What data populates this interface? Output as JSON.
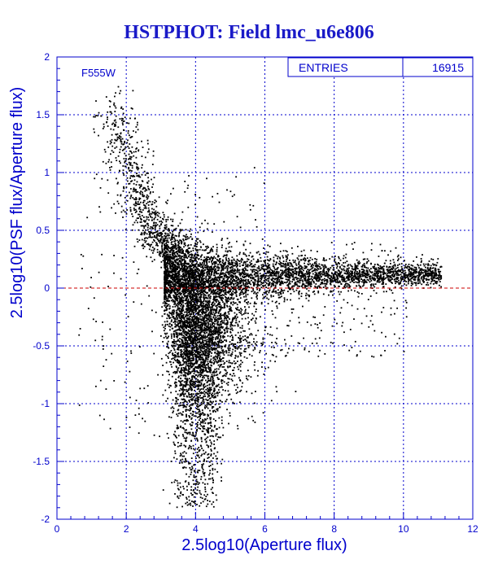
{
  "chart_data": {
    "type": "scatter",
    "title": "HSTPHOT: Field lmc_u6e806",
    "xlabel": "2.5log10(Aperture flux)",
    "ylabel": "2.5log10(PSF flux/Aperture flux)",
    "xlim": [
      0,
      12
    ],
    "ylim": [
      -2,
      2
    ],
    "x_ticks": [
      "0",
      "2",
      "4",
      "6",
      "8",
      "10",
      "12"
    ],
    "y_ticks": [
      "-2",
      "-1.5",
      "-1",
      "-0.5",
      "0",
      "0.5",
      "1",
      "1.5",
      "2"
    ],
    "x_grid_values": [
      2,
      4,
      6,
      8,
      10
    ],
    "y_grid_values": [
      -1.5,
      -1,
      -0.5,
      0.5,
      1,
      1.5
    ],
    "grid": true,
    "reference_line_y": 0,
    "filter_label": "F555W",
    "stats_box": {
      "label": "ENTRIES",
      "value": "16915",
      "placement": "top-right"
    },
    "entries": 16915,
    "point_count_rendered": 9000,
    "distribution": {
      "description_note": "",
      "bright_branch": {
        "x_range": [
          3,
          11.1
        ],
        "y_center": 0.12,
        "y_spread": 0.05
      },
      "faint_plume": {
        "x_range": [
          3.2,
          6.5
        ],
        "y_center": -0.35,
        "y_spread": 0.3
      },
      "upper_arm": {
        "x_range": [
          1.5,
          3.5
        ],
        "y_range": [
          0.3,
          1.5
        ]
      },
      "lower_tail": {
        "x_range": [
          3.3,
          4.6
        ],
        "y_range": [
          -2,
          -0.8
        ]
      }
    }
  },
  "colors": {
    "title": "#1a1ac8",
    "axis": "#0000cc",
    "grid": "#0000cc",
    "points": "#000000",
    "reference_line": "#cc0000",
    "background": "#ffffff"
  }
}
